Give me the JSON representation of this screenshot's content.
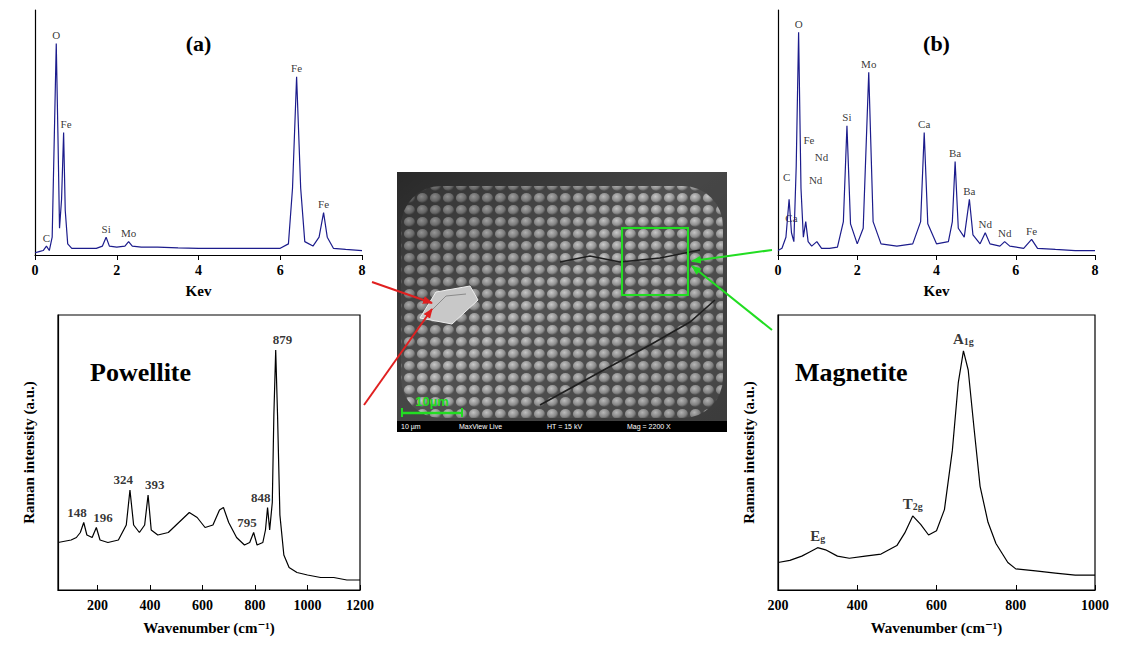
{
  "chart_data": [
    {
      "type": "line",
      "title": "(a)",
      "x_label": "Kev",
      "x": [
        0,
        0.1,
        0.2,
        0.28,
        0.35,
        0.42,
        0.48,
        0.52,
        0.56,
        0.6,
        0.65,
        0.7,
        0.74,
        0.8,
        0.9,
        1.0,
        1.2,
        1.5,
        1.65,
        1.74,
        1.82,
        2.0,
        2.2,
        2.29,
        2.38,
        2.6,
        3.0,
        3.5,
        4.0,
        4.5,
        5.0,
        5.5,
        6.0,
        6.2,
        6.3,
        6.4,
        6.5,
        6.6,
        6.8,
        6.95,
        7.06,
        7.15,
        7.3,
        7.6,
        8.0
      ],
      "values": [
        1,
        1.5,
        2,
        4,
        2,
        8,
        60,
        95,
        55,
        12,
        25,
        55,
        20,
        5,
        3,
        3,
        3,
        3,
        4,
        8,
        4,
        3.5,
        4,
        6,
        4,
        3.5,
        3.5,
        3.2,
        3,
        3,
        3,
        3,
        3,
        5,
        30,
        80,
        30,
        6,
        4,
        8,
        19,
        8,
        3,
        2.5,
        2
      ],
      "color": "#1c1c8c",
      "xlim": [
        0,
        8
      ],
      "xticks": [
        0,
        2,
        4,
        6,
        8
      ],
      "ylim": [
        0,
        110
      ],
      "tick_labels": "x",
      "grid": false,
      "annotations": [
        {
          "text": "C",
          "x": 0.28,
          "y": 4
        },
        {
          "text": "O",
          "x": 0.52,
          "y": 95
        },
        {
          "text": "Fe",
          "x": 0.76,
          "y": 55
        },
        {
          "text": "Si",
          "x": 1.74,
          "y": 8
        },
        {
          "text": "Mo",
          "x": 2.29,
          "y": 6
        },
        {
          "text": "Fe",
          "x": 6.4,
          "y": 80
        },
        {
          "text": "Fe",
          "x": 7.06,
          "y": 19
        }
      ]
    },
    {
      "type": "line",
      "title": "(b)",
      "x_label": "Kev",
      "x": [
        0,
        0.1,
        0.2,
        0.28,
        0.34,
        0.4,
        0.46,
        0.52,
        0.58,
        0.64,
        0.7,
        0.76,
        0.85,
        0.98,
        1.1,
        1.3,
        1.5,
        1.65,
        1.74,
        1.83,
        2.0,
        2.15,
        2.29,
        2.4,
        2.6,
        3.0,
        3.4,
        3.6,
        3.69,
        3.78,
        4.0,
        4.3,
        4.4,
        4.47,
        4.55,
        4.7,
        4.83,
        4.92,
        5.1,
        5.23,
        5.35,
        5.6,
        5.72,
        5.85,
        6.2,
        6.4,
        6.55,
        7.0,
        7.5,
        8.0
      ],
      "values": [
        2,
        3,
        8,
        25,
        10,
        6,
        40,
        100,
        30,
        8,
        15,
        6,
        4,
        6,
        3,
        3,
        3.5,
        15,
        58,
        14,
        5,
        12,
        82,
        15,
        5,
        4,
        5,
        15,
        55,
        14,
        5,
        6,
        15,
        42,
        12,
        8,
        25,
        9,
        5,
        10,
        5,
        4,
        6,
        4,
        3,
        7,
        3,
        2.5,
        2,
        2
      ],
      "color": "#1c1c8c",
      "xlim": [
        0,
        8
      ],
      "xticks": [
        0,
        2,
        4,
        6,
        8
      ],
      "ylim": [
        0,
        110
      ],
      "tick_labels": "x",
      "grid": false,
      "annotations": [
        {
          "text": "C",
          "x": 0.22,
          "y": 31
        },
        {
          "text": "Ca",
          "x": 0.34,
          "y": 13
        },
        {
          "text": "O",
          "x": 0.52,
          "y": 100
        },
        {
          "text": "Fe",
          "x": 0.78,
          "y": 48
        },
        {
          "text": "Nd",
          "x": 0.95,
          "y": 30
        },
        {
          "text": "Nd",
          "x": 1.1,
          "y": 40
        },
        {
          "text": "Si",
          "x": 1.74,
          "y": 58
        },
        {
          "text": "Mo",
          "x": 2.29,
          "y": 82
        },
        {
          "text": "Ca",
          "x": 3.69,
          "y": 55
        },
        {
          "text": "Ba",
          "x": 4.47,
          "y": 42
        },
        {
          "text": "Ba",
          "x": 4.83,
          "y": 25
        },
        {
          "text": "Nd",
          "x": 5.23,
          "y": 10
        },
        {
          "text": "Nd",
          "x": 5.72,
          "y": 6
        },
        {
          "text": "Fe",
          "x": 6.4,
          "y": 7
        }
      ]
    },
    {
      "type": "line",
      "title": "Powellite",
      "x_label": "Wavenumber (cm⁻¹)",
      "y_label": "Raman intensity (a.u.)",
      "x": [
        50,
        100,
        120,
        135,
        148,
        160,
        180,
        196,
        210,
        240,
        280,
        310,
        324,
        338,
        360,
        380,
        393,
        405,
        430,
        470,
        500,
        530,
        550,
        580,
        610,
        640,
        665,
        680,
        700,
        730,
        760,
        780,
        795,
        808,
        830,
        840,
        848,
        856,
        866,
        872,
        879,
        886,
        895,
        910,
        930,
        960,
        1000,
        1050,
        1100,
        1150,
        1200
      ],
      "values": [
        19,
        20,
        21,
        23,
        27,
        22,
        21,
        25,
        20,
        19,
        20,
        26,
        40,
        26,
        23,
        26,
        38,
        24,
        22,
        23,
        26,
        29,
        31,
        29,
        25,
        26,
        32,
        33,
        27,
        21,
        18,
        19,
        23,
        18,
        19,
        24,
        33,
        24,
        35,
        70,
        96,
        70,
        30,
        14,
        9,
        7,
        6,
        5,
        5,
        4,
        4
      ],
      "color": "#000000",
      "xlim": [
        50,
        1200
      ],
      "xticks": [
        200,
        400,
        600,
        800,
        1000,
        1200
      ],
      "ylim": [
        0,
        110
      ],
      "tick_labels": "x",
      "grid": false,
      "peaks": [
        {
          "x": 148,
          "y": 27
        },
        {
          "x": 196,
          "y": 25
        },
        {
          "x": 324,
          "y": 40
        },
        {
          "x": 393,
          "y": 38
        },
        {
          "x": 795,
          "y": 23
        },
        {
          "x": 848,
          "y": 33
        },
        {
          "x": 879,
          "y": 96
        }
      ]
    },
    {
      "type": "line",
      "title": "Magnetite",
      "x_label": "Wavenumber (cm⁻¹)",
      "y_label": "Raman intensity (a.u.)",
      "x": [
        200,
        230,
        260,
        280,
        300,
        320,
        350,
        380,
        420,
        460,
        500,
        520,
        540,
        560,
        580,
        600,
        620,
        640,
        655,
        668,
        680,
        695,
        710,
        730,
        750,
        780,
        800,
        850,
        900,
        950,
        1000
      ],
      "values": [
        13,
        14,
        16,
        18,
        20,
        19,
        16,
        15,
        16,
        17,
        21,
        27,
        35,
        31,
        26,
        28,
        38,
        66,
        98,
        113,
        104,
        76,
        49,
        32,
        22,
        13,
        10,
        9,
        8,
        7,
        7
      ],
      "color": "#000000",
      "xlim": [
        200,
        1000
      ],
      "xticks": [
        200,
        400,
        600,
        800,
        1000
      ],
      "ylim": [
        0,
        130
      ],
      "tick_labels": "x",
      "grid": false,
      "annotations": [
        {
          "text": "Eg",
          "x": 300,
          "y": 20
        },
        {
          "text": "T2g",
          "x": 540,
          "y": 35
        },
        {
          "text": "A1g",
          "x": 668,
          "y": 113
        }
      ]
    }
  ],
  "sem_image": {
    "scale_bar": "10µm",
    "info_bar": [
      "10 µm",
      "MaxView Live",
      "HT = 15 kV",
      "Mag = 2200 X"
    ]
  }
}
